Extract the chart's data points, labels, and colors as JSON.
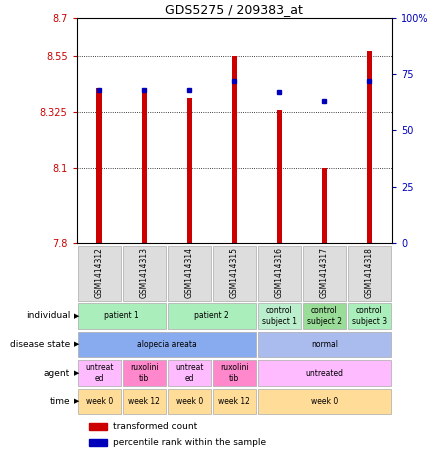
{
  "title": "GDS5275 / 209383_at",
  "samples": [
    "GSM1414312",
    "GSM1414313",
    "GSM1414314",
    "GSM1414315",
    "GSM1414316",
    "GSM1414317",
    "GSM1414318"
  ],
  "transformed_counts": [
    8.42,
    8.42,
    8.38,
    8.55,
    8.33,
    8.1,
    8.57
  ],
  "percentile_ranks": [
    68,
    68,
    68,
    72,
    67,
    63,
    72
  ],
  "y_min": 7.8,
  "y_max": 8.7,
  "y_ticks": [
    7.8,
    8.1,
    8.325,
    8.55,
    8.7
  ],
  "y_tick_labels": [
    "7.8",
    "8.1",
    "8.325",
    "8.55",
    "8.7"
  ],
  "right_y_ticks": [
    0,
    25,
    50,
    75,
    100
  ],
  "right_y_tick_labels": [
    "0",
    "25",
    "50",
    "75",
    "100%"
  ],
  "bar_color": "#cc0000",
  "dot_color": "#0000bb",
  "bar_base": 7.8,
  "annotation_rows": [
    {
      "label": "individual",
      "cells": [
        {
          "text": "patient 1",
          "span": 2,
          "color": "#aaeebb"
        },
        {
          "text": "patient 2",
          "span": 2,
          "color": "#aaeebb"
        },
        {
          "text": "control\nsubject 1",
          "span": 1,
          "color": "#bbeecc"
        },
        {
          "text": "control\nsubject 2",
          "span": 1,
          "color": "#99dd99"
        },
        {
          "text": "control\nsubject 3",
          "span": 1,
          "color": "#aaeebb"
        }
      ]
    },
    {
      "label": "disease state",
      "cells": [
        {
          "text": "alopecia areata",
          "span": 4,
          "color": "#88aaee"
        },
        {
          "text": "normal",
          "span": 3,
          "color": "#aabbee"
        }
      ]
    },
    {
      "label": "agent",
      "cells": [
        {
          "text": "untreat\ned",
          "span": 1,
          "color": "#ffbbff"
        },
        {
          "text": "ruxolini\ntib",
          "span": 1,
          "color": "#ff88cc"
        },
        {
          "text": "untreat\ned",
          "span": 1,
          "color": "#ffbbff"
        },
        {
          "text": "ruxolini\ntib",
          "span": 1,
          "color": "#ff88cc"
        },
        {
          "text": "untreated",
          "span": 3,
          "color": "#ffbbff"
        }
      ]
    },
    {
      "label": "time",
      "cells": [
        {
          "text": "week 0",
          "span": 1,
          "color": "#ffdd99"
        },
        {
          "text": "week 12",
          "span": 1,
          "color": "#ffdd99"
        },
        {
          "text": "week 0",
          "span": 1,
          "color": "#ffdd99"
        },
        {
          "text": "week 12",
          "span": 1,
          "color": "#ffdd99"
        },
        {
          "text": "week 0",
          "span": 3,
          "color": "#ffdd99"
        }
      ]
    }
  ],
  "legend": [
    {
      "color": "#cc0000",
      "label": "transformed count"
    },
    {
      "color": "#0000bb",
      "label": "percentile rank within the sample"
    }
  ],
  "figsize": [
    4.38,
    4.53
  ],
  "dpi": 100
}
